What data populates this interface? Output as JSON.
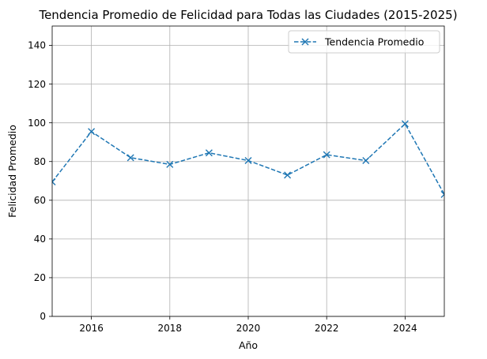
{
  "chart_data": {
    "type": "line",
    "title": "Tendencia Promedio de Felicidad para Todas las Ciudades (2015-2025)",
    "xlabel": "Año",
    "ylabel": "Felicidad Promedio",
    "xlim": [
      2015,
      2025
    ],
    "ylim": [
      0,
      150
    ],
    "xticks": [
      2016,
      2018,
      2020,
      2022,
      2024
    ],
    "yticks": [
      0,
      20,
      40,
      60,
      80,
      100,
      120,
      140
    ],
    "grid": true,
    "legend_position": "top-right",
    "series": [
      {
        "name": "Tendencia Promedio",
        "color": "#1f77b4",
        "line_style": "dashed",
        "marker": "x",
        "x": [
          2015,
          2016,
          2017,
          2018,
          2019,
          2020,
          2021,
          2022,
          2023,
          2024,
          2025
        ],
        "y": [
          69.5,
          95.5,
          82,
          78.5,
          84.5,
          80.5,
          73,
          83.5,
          80.5,
          99.5,
          63
        ]
      }
    ]
  }
}
